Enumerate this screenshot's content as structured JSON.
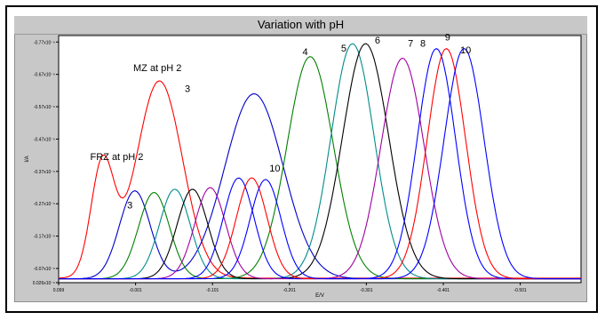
{
  "chart_data": {
    "type": "line",
    "title": "Variation with pH",
    "xlabel": "E/V",
    "ylabel": "I/A",
    "x_tick_labels": [
      "0.099",
      "-0.001",
      "-0.101",
      "-0.201",
      "-0.301",
      "-0.401",
      "-0.501"
    ],
    "x_ticks": [
      0.099,
      -0.001,
      -0.101,
      -0.201,
      -0.301,
      -0.401,
      -0.501
    ],
    "xlim": [
      0.099,
      -0.58
    ],
    "y_tick_labels": [
      "0.026x10⁻⁶",
      "-0.07x10⁻⁶",
      "-0.17x10⁻⁶",
      "-0.27x10⁻⁶",
      "-0.37x10⁻⁶",
      "-0.47x10⁻⁶",
      "-0.57x10⁻⁶",
      "-0.67x10⁻⁶",
      "-0.77x10⁻⁶"
    ],
    "y_ticks": [
      0.026,
      0.07,
      0.17,
      0.27,
      0.37,
      0.47,
      0.57,
      0.67,
      0.77
    ],
    "ylim": [
      0.026,
      0.79
    ],
    "grid": false,
    "annotations": [
      {
        "text": "FRZ at pH 2",
        "x": 0.058,
        "y": 0.405
      },
      {
        "text": "MZ at pH 2",
        "x": 0.002,
        "y": 0.68
      },
      {
        "text": "3",
        "x": -0.065,
        "y": 0.615
      },
      {
        "text": "3",
        "x": 0.01,
        "y": 0.255
      },
      {
        "text": "4",
        "x": -0.218,
        "y": 0.73
      },
      {
        "text": "5",
        "x": -0.268,
        "y": 0.74
      },
      {
        "text": "6",
        "x": -0.312,
        "y": 0.765
      },
      {
        "text": "7",
        "x": -0.355,
        "y": 0.755
      },
      {
        "text": "8",
        "x": -0.371,
        "y": 0.755
      },
      {
        "text": "9",
        "x": -0.403,
        "y": 0.775
      },
      {
        "text": "10",
        "x": -0.423,
        "y": 0.735
      },
      {
        "text": "10",
        "x": -0.175,
        "y": 0.37
      }
    ],
    "series": [
      {
        "color": "#ff0000",
        "baseline": 0.04,
        "peaks": [
          {
            "x": 0.042,
            "h": 0.39,
            "w": 0.015
          },
          {
            "x": -0.032,
            "h": 0.65,
            "w": 0.03
          }
        ]
      },
      {
        "color": "#0000c8",
        "baseline": 0.038,
        "peaks": [
          {
            "x": 0.0,
            "h": 0.31,
            "w": 0.02
          },
          {
            "x": -0.155,
            "h": 0.61,
            "w": 0.038
          }
        ]
      },
      {
        "color": "#008000",
        "baseline": 0.038,
        "peaks": [
          {
            "x": -0.025,
            "h": 0.305,
            "w": 0.02
          },
          {
            "x": -0.228,
            "h": 0.725,
            "w": 0.03
          }
        ]
      },
      {
        "color": "#008b8b",
        "baseline": 0.038,
        "peaks": [
          {
            "x": -0.052,
            "h": 0.315,
            "w": 0.02
          },
          {
            "x": -0.283,
            "h": 0.765,
            "w": 0.028
          }
        ]
      },
      {
        "color": "#000000",
        "baseline": 0.038,
        "peaks": [
          {
            "x": -0.075,
            "h": 0.315,
            "w": 0.02
          },
          {
            "x": -0.3,
            "h": 0.765,
            "w": 0.03
          }
        ]
      },
      {
        "color": "#a000a0",
        "baseline": 0.038,
        "peaks": [
          {
            "x": -0.098,
            "h": 0.32,
            "w": 0.02
          },
          {
            "x": -0.348,
            "h": 0.72,
            "w": 0.028
          }
        ]
      },
      {
        "color": "#0000ff",
        "baseline": 0.038,
        "peaks": [
          {
            "x": -0.135,
            "h": 0.35,
            "w": 0.02
          },
          {
            "x": -0.392,
            "h": 0.75,
            "w": 0.025
          }
        ]
      },
      {
        "color": "#ff0000",
        "baseline": 0.038,
        "peaks": [
          {
            "x": -0.152,
            "h": 0.35,
            "w": 0.02
          },
          {
            "x": -0.405,
            "h": 0.75,
            "w": 0.025
          }
        ]
      },
      {
        "color": "#0000ff",
        "baseline": 0.038,
        "peaks": [
          {
            "x": -0.17,
            "h": 0.345,
            "w": 0.02
          },
          {
            "x": -0.428,
            "h": 0.75,
            "w": 0.026
          }
        ]
      }
    ]
  }
}
